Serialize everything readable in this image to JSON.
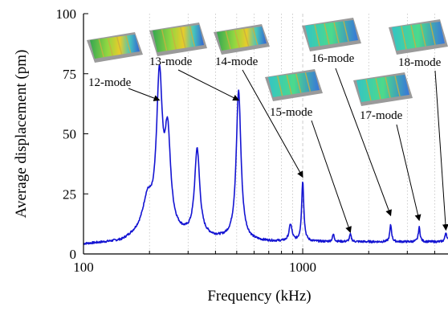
{
  "chart_data": {
    "type": "line",
    "x_scale": "log",
    "xlabel": "Frequency (kHz)",
    "ylabel": "Average displacement (pm)",
    "xlim": [
      100,
      4600
    ],
    "ylim": [
      0,
      100
    ],
    "x_ticks": [
      100,
      1000
    ],
    "x_tick_labels": [
      "100",
      "1000"
    ],
    "y_ticks": [
      0,
      25,
      50,
      75,
      100
    ],
    "y_tick_labels": [
      "0",
      "25",
      "50",
      "75",
      "100"
    ],
    "grid": "vertical dotted minor lines",
    "series": [
      {
        "color": "#1414d2",
        "baseline": [
          [
            100,
            4
          ],
          [
            150,
            5
          ],
          [
            190,
            9
          ],
          [
            300,
            7
          ],
          [
            600,
            5
          ],
          [
            1000,
            5
          ],
          [
            2000,
            5
          ],
          [
            4600,
            5
          ]
        ],
        "peaks": [
          {
            "x": 196,
            "y": 12,
            "w": 0.025
          },
          {
            "x": 222,
            "y": 62,
            "w": 0.016
          },
          {
            "x": 242,
            "y": 38,
            "w": 0.016
          },
          {
            "x": 330,
            "y": 36,
            "w": 0.014
          },
          {
            "x": 510,
            "y": 62,
            "w": 0.013
          },
          {
            "x": 880,
            "y": 7,
            "w": 0.008
          },
          {
            "x": 1000,
            "y": 25,
            "w": 0.006
          },
          {
            "x": 1380,
            "y": 3,
            "w": 0.005
          },
          {
            "x": 1650,
            "y": 3,
            "w": 0.005
          },
          {
            "x": 2520,
            "y": 7,
            "w": 0.005
          },
          {
            "x": 3400,
            "y": 6,
            "w": 0.005
          },
          {
            "x": 4500,
            "y": 4,
            "w": 0.005
          }
        ]
      }
    ],
    "annotations": [
      {
        "label": "12-mode",
        "peak_x": 222,
        "peak_y": 64
      },
      {
        "label": "13-mode",
        "peak_x": 510,
        "peak_y": 64
      },
      {
        "label": "14-mode",
        "peak_x": 1000,
        "peak_y": 32
      },
      {
        "label": "15-mode",
        "peak_x": 1650,
        "peak_y": 9
      },
      {
        "label": "16-mode",
        "peak_x": 2520,
        "peak_y": 16
      },
      {
        "label": "17-mode",
        "peak_x": 3400,
        "peak_y": 14
      },
      {
        "label": "18-mode",
        "peak_x": 4500,
        "peak_y": 10
      }
    ]
  }
}
